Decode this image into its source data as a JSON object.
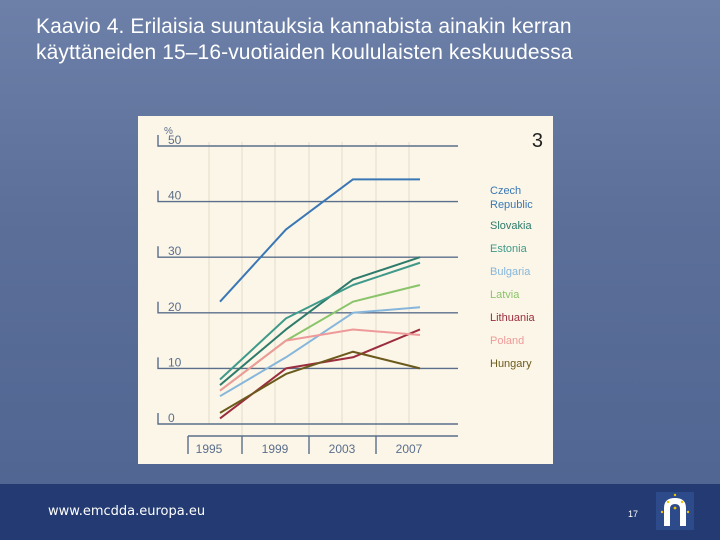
{
  "slide": {
    "title": "Kaavio 4. Erilaisia suuntauksia kannabista ainakin kerran käyttäneiden 15–16-vuotiaiden koululaisten keskuudessa",
    "footer_url": "www.emcdda.europa.eu",
    "page_number": "17",
    "chart_number": "3"
  },
  "colors": {
    "footer": "#233a72",
    "panel": "#fbf6e7",
    "axis": "#5b6e8c"
  },
  "chart_data": {
    "type": "line",
    "title": "",
    "xlabel": "",
    "ylabel": "%",
    "x": [
      1995,
      1999,
      2003,
      2007
    ],
    "x_tick_labels": [
      "1995",
      "1999",
      "2003",
      "2007"
    ],
    "y_tick_labels": [
      "0",
      "10",
      "20",
      "30",
      "40",
      "50"
    ],
    "ylim": [
      0,
      50
    ],
    "legend_position": "right",
    "series": [
      {
        "name": "Czech Republic",
        "color": "#3a78b5",
        "values": [
          22,
          35,
          44,
          44
        ]
      },
      {
        "name": "Slovakia",
        "color": "#2e7b6c",
        "values": [
          7,
          17,
          26,
          30
        ]
      },
      {
        "name": "Estonia",
        "color": "#3f9a8b",
        "values": [
          8,
          19,
          25,
          29
        ]
      },
      {
        "name": "Bulgaria",
        "color": "#86b6dc",
        "values": [
          5,
          12,
          20,
          21
        ]
      },
      {
        "name": "Latvia",
        "color": "#8ac46a",
        "values": [
          6,
          15,
          22,
          25
        ]
      },
      {
        "name": "Lithuania",
        "color": "#9b2d3e",
        "values": [
          1,
          10,
          12,
          17
        ]
      },
      {
        "name": "Poland",
        "color": "#ef9a9a",
        "values": [
          6,
          15,
          17,
          16
        ]
      },
      {
        "name": "Hungary",
        "color": "#6b5a1c",
        "values": [
          2,
          9,
          13,
          10
        ]
      }
    ]
  }
}
